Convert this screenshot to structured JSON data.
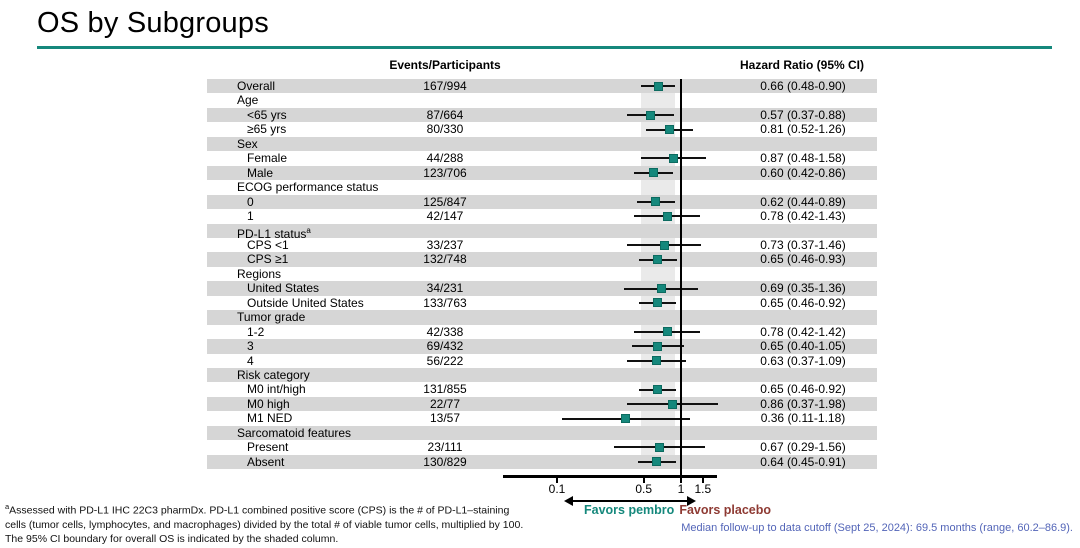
{
  "title": "OS by Subgroups",
  "headers": {
    "events": "Events/Participants",
    "hazard_ratio": "Hazard Ratio (95% CI)"
  },
  "colors": {
    "teal": "#15887c",
    "maroon": "#8e3a33",
    "blue": "#5365b8",
    "band": "#d6d6d6",
    "column": "#eaeaea"
  },
  "favors": {
    "left": "Favors pembro",
    "right": "Favors placebo"
  },
  "footnotes": {
    "sup": "a",
    "left_lines": [
      "Assessed with PD-L1 IHC 22C3 pharmDx. PD-L1 combined positive score (CPS) is the # of PD-L1–staining",
      "cells (tumor cells, lymphocytes, and macrophages) divided by the total # of viable tumor cells, multiplied by 100.",
      "The 95% CI boundary for overall OS is indicated by the shaded column."
    ],
    "right": "Median follow-up to data cutoff (Sept 25, 2024): 69.5 months (range, 60.2–86.9)."
  },
  "chart_data": {
    "type": "scatter",
    "subtype": "forest",
    "x_scale": "log",
    "xlim": [
      0.08,
      1.9
    ],
    "x_ticks": [
      0.1,
      0.5,
      1,
      1.5
    ],
    "x_tick_labels": [
      "0.1",
      "0.5",
      "1",
      "1.5"
    ],
    "ref_line": 1.0,
    "shaded_column": [
      0.48,
      0.9
    ],
    "grid": false,
    "legend": "none",
    "rows": [
      {
        "label": "Overall",
        "indent": 0,
        "events": "167/994",
        "hr": 0.66,
        "lo": 0.48,
        "hi": 0.9,
        "hr_text": "0.66 (0.48-0.90)"
      },
      {
        "label": "Age",
        "indent": 0
      },
      {
        "label": "<65 yrs",
        "indent": 1,
        "events": "87/664",
        "hr": 0.57,
        "lo": 0.37,
        "hi": 0.88,
        "hr_text": "0.57 (0.37-0.88)"
      },
      {
        "label": "≥65 yrs",
        "indent": 1,
        "events": "80/330",
        "hr": 0.81,
        "lo": 0.52,
        "hi": 1.26,
        "hr_text": "0.81 (0.52-1.26)"
      },
      {
        "label": "Sex",
        "indent": 0
      },
      {
        "label": "Female",
        "indent": 1,
        "events": "44/288",
        "hr": 0.87,
        "lo": 0.48,
        "hi": 1.58,
        "hr_text": "0.87 (0.48-1.58)"
      },
      {
        "label": "Male",
        "indent": 1,
        "events": "123/706",
        "hr": 0.6,
        "lo": 0.42,
        "hi": 0.86,
        "hr_text": "0.60 (0.42-0.86)"
      },
      {
        "label": "ECOG performance status",
        "indent": 0
      },
      {
        "label": "0",
        "indent": 1,
        "events": "125/847",
        "hr": 0.62,
        "lo": 0.44,
        "hi": 0.89,
        "hr_text": "0.62 (0.44-0.89)"
      },
      {
        "label": "1",
        "indent": 1,
        "events": "42/147",
        "hr": 0.78,
        "lo": 0.42,
        "hi": 1.43,
        "hr_text": "0.78 (0.42-1.43)"
      },
      {
        "label": "PD-L1 status",
        "sup": "a",
        "indent": 0
      },
      {
        "label": "CPS <1",
        "indent": 1,
        "events": "33/237",
        "hr": 0.73,
        "lo": 0.37,
        "hi": 1.46,
        "hr_text": "0.73 (0.37-1.46)"
      },
      {
        "label": "CPS ≥1",
        "indent": 1,
        "events": "132/748",
        "hr": 0.65,
        "lo": 0.46,
        "hi": 0.93,
        "hr_text": "0.65 (0.46-0.93)"
      },
      {
        "label": "Regions",
        "indent": 0
      },
      {
        "label": "United States",
        "indent": 1,
        "events": "34/231",
        "hr": 0.69,
        "lo": 0.35,
        "hi": 1.36,
        "hr_text": "0.69 (0.35-1.36)"
      },
      {
        "label": "Outside United States",
        "indent": 1,
        "events": "133/763",
        "hr": 0.65,
        "lo": 0.46,
        "hi": 0.92,
        "hr_text": "0.65 (0.46-0.92)"
      },
      {
        "label": "Tumor grade",
        "indent": 0
      },
      {
        "label": "1-2",
        "indent": 1,
        "events": "42/338",
        "hr": 0.78,
        "lo": 0.42,
        "hi": 1.42,
        "hr_text": "0.78 (0.42-1.42)"
      },
      {
        "label": "3",
        "indent": 1,
        "events": "69/432",
        "hr": 0.65,
        "lo": 0.4,
        "hi": 1.05,
        "hr_text": "0.65 (0.40-1.05)"
      },
      {
        "label": "4",
        "indent": 1,
        "events": "56/222",
        "hr": 0.63,
        "lo": 0.37,
        "hi": 1.09,
        "hr_text": "0.63 (0.37-1.09)"
      },
      {
        "label": "Risk category",
        "indent": 0
      },
      {
        "label": "M0 int/high",
        "indent": 1,
        "events": "131/855",
        "hr": 0.65,
        "lo": 0.46,
        "hi": 0.92,
        "hr_text": "0.65 (0.46-0.92)"
      },
      {
        "label": "M0 high",
        "indent": 1,
        "events": "22/77",
        "hr": 0.86,
        "lo": 0.37,
        "hi": 1.98,
        "hr_text": "0.86 (0.37-1.98)"
      },
      {
        "label": "M1 NED",
        "indent": 1,
        "events": "13/57",
        "hr": 0.36,
        "lo": 0.11,
        "hi": 1.18,
        "hr_text": "0.36 (0.11-1.18)"
      },
      {
        "label": "Sarcomatoid features",
        "indent": 0
      },
      {
        "label": "Present",
        "indent": 1,
        "events": "23/111",
        "hr": 0.67,
        "lo": 0.29,
        "hi": 1.56,
        "hr_text": "0.67 (0.29-1.56)"
      },
      {
        "label": "Absent",
        "indent": 1,
        "events": "130/829",
        "hr": 0.64,
        "lo": 0.45,
        "hi": 0.91,
        "hr_text": "0.64 (0.45-0.91)"
      }
    ]
  }
}
